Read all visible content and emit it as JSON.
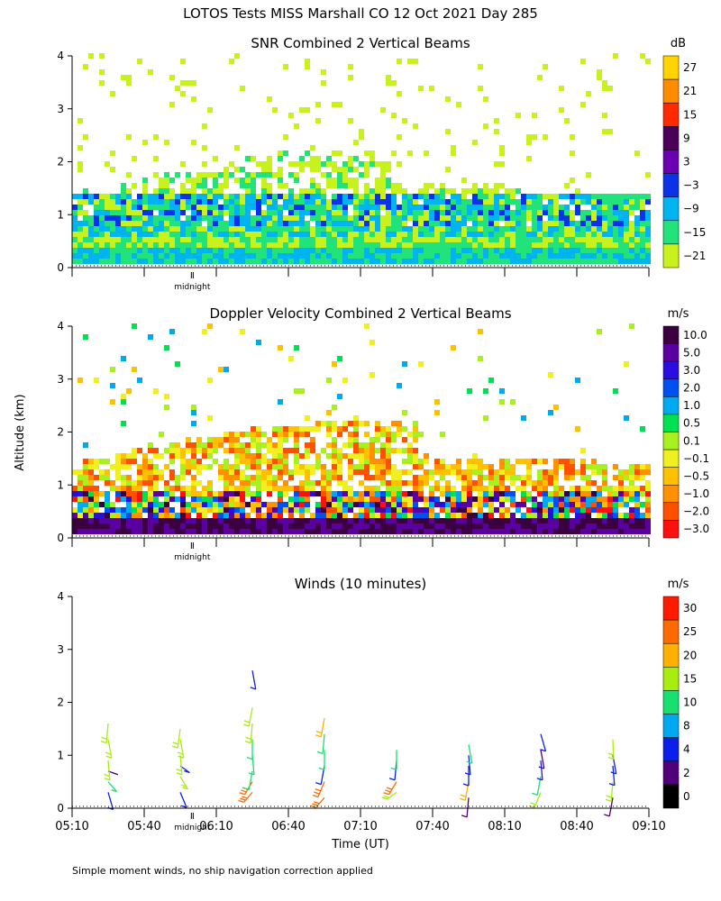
{
  "figure": {
    "title": "LOTOS Tests MISS Marshall CO  12 Oct 2021 Day 285",
    "ylabel": "Altitude (km)",
    "xlabel": "Time (UT)",
    "footnote": "Simple moment winds, no ship navigation correction applied",
    "midnight_label": "midnight"
  },
  "chart_data": [
    {
      "type": "heatmap",
      "title": "SNR Combined 2 Vertical Beams",
      "unit": "dB",
      "xlim": [
        "05:10",
        "09:10"
      ],
      "ylim": [
        0,
        4
      ],
      "yticks": [
        "0",
        "1",
        "2",
        "3",
        "4"
      ],
      "colorbar": {
        "labels": [
          "27",
          "21",
          "15",
          "9",
          "3",
          "−3",
          "−9",
          "−15",
          "−21"
        ],
        "colors": [
          "#ffd400",
          "#ff8c00",
          "#ff2a00",
          "#4a0058",
          "#6a00b0",
          "#0a32e6",
          "#00b4f0",
          "#22e27a",
          "#c8f21e"
        ]
      },
      "rows": [
        {
          "alt": 0.3,
          "band": [
            [
              0.0,
              1.0,
              "c15",
              0.1
            ]
          ]
        },
        {
          "alt": 0.45,
          "band": [
            [
              0.0,
              1.0,
              "c21",
              0.1
            ]
          ]
        },
        {
          "alt": 0.6,
          "band": [
            [
              0.0,
              1.0,
              "c9",
              0.12
            ]
          ]
        },
        {
          "alt": 1.0,
          "band": [
            [
              0.02,
              1.0,
              "c15",
              0.35
            ]
          ]
        }
      ]
    },
    {
      "type": "heatmap",
      "title": "Doppler Velocity Combined 2 Vertical Beams",
      "unit": "m/s",
      "xlim": [
        "05:10",
        "09:10"
      ],
      "ylim": [
        0,
        4
      ],
      "yticks": [
        "0",
        "1",
        "2",
        "3",
        "4"
      ],
      "colorbar": {
        "labels": [
          "10.0",
          "5.0",
          "3.0",
          "2.0",
          "1.0",
          "0.5",
          "0.1",
          "−0.1",
          "−0.5",
          "−1.0",
          "−2.0",
          "−3.0"
        ],
        "colors": [
          "#3a0040",
          "#5a00a0",
          "#2a0ee0",
          "#0050f0",
          "#00aaf0",
          "#00e050",
          "#a8f020",
          "#f0f020",
          "#ffc000",
          "#ff9000",
          "#ff5000",
          "#ff1010"
        ]
      }
    },
    {
      "type": "scatter",
      "title": "Winds (10 minutes)",
      "unit": "m/s",
      "xlim": [
        "05:10",
        "09:10"
      ],
      "ylim": [
        0,
        4
      ],
      "yticks": [
        "0",
        "1",
        "2",
        "3",
        "4"
      ],
      "xticks": [
        "05:10",
        "05:40",
        "06:10",
        "06:40",
        "07:10",
        "07:40",
        "08:10",
        "08:40",
        "09:10"
      ],
      "colorbar": {
        "labels": [
          "30",
          "25",
          "20",
          "15",
          "10",
          "8",
          "4",
          "2",
          "0"
        ],
        "colors": [
          "#ff1a00",
          "#ff6a00",
          "#ffb000",
          "#a8ec10",
          "#18e070",
          "#00a8f0",
          "#0a20e8",
          "#52007a",
          "#000000"
        ]
      },
      "profiles": [
        {
          "time": "05:25",
          "barbs": [
            [
              0.3,
              4,
              150
            ],
            [
              0.5,
              10,
              120
            ],
            [
              0.7,
              2,
              100
            ],
            [
              0.9,
              15,
              170
            ],
            [
              1.3,
              15,
              160
            ],
            [
              1.6,
              15,
              190
            ]
          ]
        },
        {
          "time": "05:55",
          "barbs": [
            [
              0.3,
              4,
              140
            ],
            [
              0.6,
              15,
              130
            ],
            [
              0.8,
              4,
              110
            ],
            [
              1.0,
              15,
              170
            ],
            [
              1.3,
              15,
              160
            ],
            [
              1.5,
              15,
              195
            ]
          ]
        },
        {
          "time": "06:25",
          "barbs": [
            [
              0.3,
              25,
              240
            ],
            [
              0.5,
              25,
              230
            ],
            [
              0.7,
              10,
              200
            ],
            [
              1.0,
              10,
              170
            ],
            [
              1.3,
              10,
              180
            ],
            [
              1.6,
              15,
              190
            ],
            [
              1.9,
              15,
              200
            ],
            [
              2.6,
              4,
              160
            ]
          ]
        },
        {
          "time": "06:55",
          "barbs": [
            [
              0.2,
              25,
              240
            ],
            [
              0.5,
              25,
              220
            ],
            [
              0.8,
              4,
              200
            ],
            [
              1.1,
              10,
              180
            ],
            [
              1.4,
              10,
              190
            ],
            [
              1.7,
              20,
              200
            ]
          ]
        },
        {
          "time": "07:25",
          "barbs": [
            [
              0.3,
              15,
              250
            ],
            [
              0.5,
              25,
              230
            ],
            [
              0.9,
              4,
              190
            ],
            [
              1.1,
              10,
              180
            ]
          ]
        },
        {
          "time": "07:55",
          "barbs": [
            [
              0.2,
              2,
              190
            ],
            [
              0.5,
              20,
              200
            ],
            [
              0.8,
              4,
              180
            ],
            [
              1.0,
              4,
              170
            ],
            [
              1.2,
              10,
              160
            ]
          ]
        },
        {
          "time": "08:25",
          "barbs": [
            [
              0.3,
              15,
              220
            ],
            [
              0.6,
              10,
              200
            ],
            [
              0.9,
              4,
              170
            ],
            [
              1.1,
              2,
              160
            ],
            [
              1.4,
              4,
              150
            ]
          ]
        },
        {
          "time": "08:55",
          "barbs": [
            [
              0.2,
              2,
              200
            ],
            [
              0.5,
              15,
              190
            ],
            [
              0.8,
              4,
              170
            ],
            [
              1.0,
              4,
              160
            ],
            [
              1.3,
              15,
              175
            ]
          ]
        }
      ]
    }
  ]
}
